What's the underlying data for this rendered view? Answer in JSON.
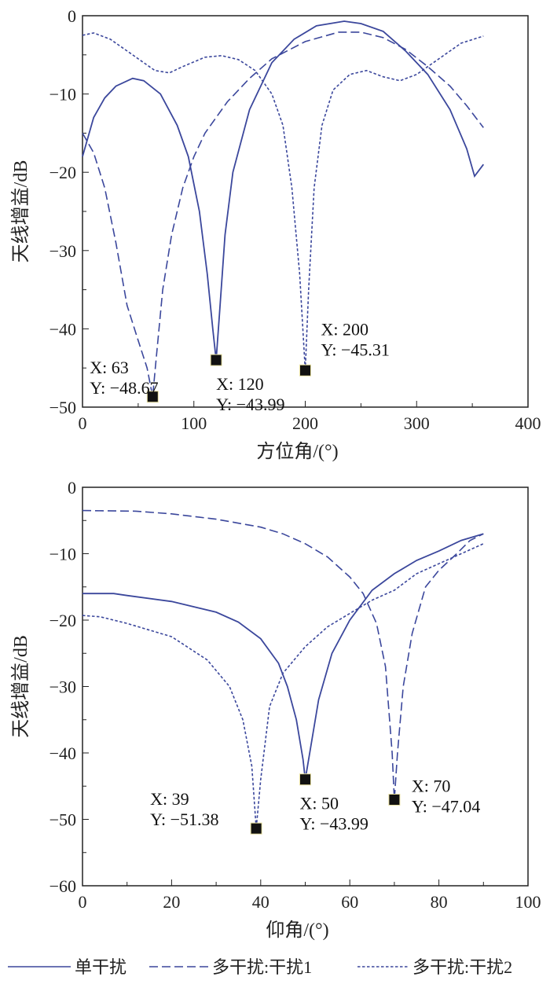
{
  "colors": {
    "line": "#3b479c",
    "axis": "#222222",
    "marker": "#111111"
  },
  "legend": [
    {
      "label": "单干扰",
      "style": "solid"
    },
    {
      "label": "多干扰:干扰1",
      "style": "dashed"
    },
    {
      "label": "多干扰:干扰2",
      "style": "dotted"
    }
  ],
  "chart_data": [
    {
      "type": "line",
      "xlabel": "方位角/(°)",
      "ylabel": "天线增益/dB",
      "xlim": [
        0,
        400
      ],
      "ylim": [
        -50,
        0
      ],
      "xticks": [
        0,
        100,
        200,
        300,
        400
      ],
      "yticks": [
        0,
        -10,
        -20,
        -30,
        -40,
        -50
      ],
      "xtick_labels": [
        "0",
        "100",
        "200",
        "300",
        "400"
      ],
      "ytick_labels": [
        "0",
        "−10",
        "−20",
        "−30",
        "−40",
        "−50"
      ],
      "xminor": 50,
      "yminor": 5,
      "grid": false,
      "series": [
        {
          "name": "单干扰",
          "style": "solid",
          "x": [
            0,
            10,
            20,
            30,
            45,
            55,
            70,
            85,
            95,
            105,
            112,
            117,
            120,
            123,
            128,
            135,
            150,
            170,
            190,
            210,
            235,
            250,
            270,
            290,
            310,
            330,
            345,
            352,
            360
          ],
          "y": [
            -18,
            -13,
            -10.5,
            -9,
            -8,
            -8.3,
            -10,
            -14,
            -18,
            -25,
            -33,
            -40,
            -43.99,
            -38,
            -28,
            -20,
            -12,
            -6,
            -3,
            -1.3,
            -0.7,
            -1,
            -2,
            -4.5,
            -7.5,
            -12,
            -17,
            -20.5,
            -19
          ]
        },
        {
          "name": "多干扰:干扰1",
          "style": "dashed",
          "x": [
            0,
            10,
            20,
            30,
            40,
            50,
            58,
            63,
            66,
            72,
            80,
            90,
            100,
            110,
            130,
            150,
            170,
            200,
            230,
            250,
            270,
            290,
            310,
            330,
            345,
            360
          ],
          "y": [
            -15,
            -17.5,
            -22,
            -29,
            -37,
            -41.5,
            -45,
            -48.67,
            -44,
            -35,
            -28,
            -22,
            -18,
            -15,
            -11,
            -8,
            -5.5,
            -3.3,
            -2.1,
            -2.1,
            -2.8,
            -4.3,
            -6.5,
            -9,
            -11.5,
            -14.3
          ]
        },
        {
          "name": "多干扰:干扰2",
          "style": "dotted",
          "x": [
            0,
            10,
            25,
            45,
            65,
            78,
            90,
            110,
            125,
            140,
            155,
            170,
            180,
            188,
            195,
            200,
            203,
            208,
            215,
            225,
            240,
            255,
            270,
            285,
            300,
            320,
            340,
            360
          ],
          "y": [
            -2.5,
            -2.2,
            -3,
            -5,
            -7,
            -7.3,
            -6.5,
            -5.3,
            -5.1,
            -5.6,
            -7,
            -10,
            -14,
            -22,
            -33,
            -45.31,
            -35,
            -22,
            -14,
            -9.5,
            -7.5,
            -7,
            -7.8,
            -8.3,
            -7.5,
            -5.5,
            -3.5,
            -2.6
          ]
        }
      ],
      "annotations": [
        {
          "x": 63,
          "y": -48.67,
          "xtext": "X: 63",
          "ytext": "Y: −48.67"
        },
        {
          "x": 120,
          "y": -43.99,
          "xtext": "X: 120",
          "ytext": "Y: −43.99"
        },
        {
          "x": 200,
          "y": -45.31,
          "xtext": "X: 200",
          "ytext": "Y: −45.31"
        }
      ]
    },
    {
      "type": "line",
      "xlabel": "仰角/(°)",
      "ylabel": "天线增益/dB",
      "xlim": [
        0,
        100
      ],
      "ylim": [
        -60,
        0
      ],
      "xticks": [
        0,
        20,
        40,
        60,
        80,
        100
      ],
      "yticks": [
        0,
        -10,
        -20,
        -30,
        -40,
        -50,
        -60
      ],
      "xtick_labels": [
        "0",
        "20",
        "40",
        "60",
        "80",
        "100"
      ],
      "ytick_labels": [
        "0",
        "−10",
        "−20",
        "−30",
        "−40",
        "−50",
        "−60"
      ],
      "xminor": 10,
      "yminor": 5,
      "grid": false,
      "series": [
        {
          "name": "单干扰",
          "style": "solid",
          "x": [
            0,
            7,
            10,
            20,
            30,
            35,
            40,
            44,
            46,
            48,
            49.5,
            50,
            51,
            53,
            56,
            60,
            65,
            70,
            75,
            80,
            85,
            90
          ],
          "y": [
            -16,
            -16,
            -16.3,
            -17.2,
            -18.8,
            -20.3,
            -22.8,
            -26.5,
            -30,
            -35,
            -41,
            -43.99,
            -40,
            -32,
            -25,
            -20,
            -15.5,
            -13,
            -11,
            -9.6,
            -8,
            -7
          ]
        },
        {
          "name": "多干扰:干扰1",
          "style": "dashed",
          "x": [
            0,
            12,
            20,
            30,
            40,
            45,
            50,
            55,
            60,
            63,
            66,
            68,
            69.5,
            70,
            70.7,
            72,
            74,
            77,
            80,
            84,
            87,
            90
          ],
          "y": [
            -3.5,
            -3.6,
            -4,
            -4.8,
            -6,
            -7,
            -8.5,
            -10.5,
            -13.5,
            -16,
            -20.5,
            -27,
            -40,
            -47.04,
            -40,
            -30,
            -22,
            -15,
            -12.5,
            -10,
            -8,
            -7
          ]
        },
        {
          "name": "多干扰:干扰2",
          "style": "dotted",
          "x": [
            0,
            4,
            10,
            20,
            28,
            33,
            36,
            38,
            39,
            40,
            42,
            45,
            50,
            55,
            60,
            65,
            70,
            75,
            80,
            85,
            90
          ],
          "y": [
            -19.3,
            -19.5,
            -20.5,
            -22.5,
            -26,
            -30,
            -35,
            -42,
            -51.38,
            -44,
            -33,
            -28,
            -24,
            -21,
            -19,
            -17,
            -15.5,
            -13,
            -11.5,
            -10,
            -8.5
          ]
        }
      ],
      "annotations": [
        {
          "x": 39,
          "y": -51.38,
          "xtext": "X: 39",
          "ytext": "Y: −51.38"
        },
        {
          "x": 50,
          "y": -43.99,
          "xtext": "X: 50",
          "ytext": "Y: −43.99"
        },
        {
          "x": 70,
          "y": -47.04,
          "xtext": "X: 70",
          "ytext": "Y: −47.04"
        }
      ]
    }
  ]
}
